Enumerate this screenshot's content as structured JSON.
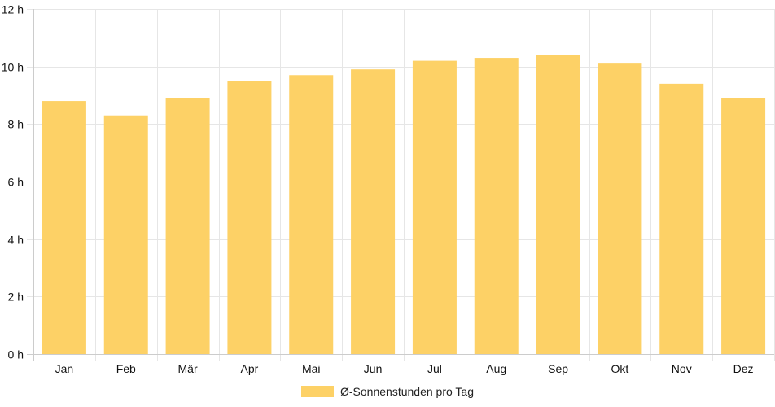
{
  "chart_data": {
    "type": "bar",
    "categories": [
      "Jan",
      "Feb",
      "Mär",
      "Apr",
      "Mai",
      "Jun",
      "Jul",
      "Aug",
      "Sep",
      "Okt",
      "Nov",
      "Dez"
    ],
    "series": [
      {
        "name": "Ø-Sonnenstunden pro Tag",
        "values": [
          8.8,
          8.3,
          8.9,
          9.5,
          9.7,
          9.9,
          10.2,
          10.3,
          10.4,
          10.1,
          9.4,
          8.9
        ]
      }
    ],
    "ylim": [
      0,
      12
    ],
    "yticks": [
      0,
      2,
      4,
      6,
      8,
      10,
      12
    ],
    "ytick_suffix": " h",
    "grid": true,
    "legend_position": "bottom",
    "colors": {
      "bar": "#fdd166",
      "grid": "#e6e6e6",
      "axis": "#cccccc"
    }
  }
}
